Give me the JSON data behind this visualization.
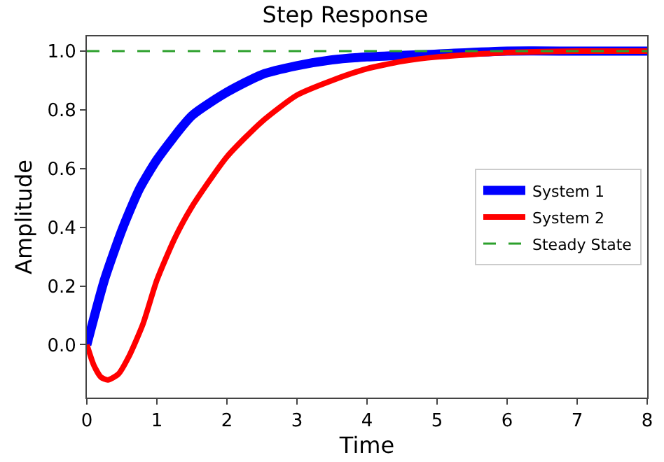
{
  "chart_data": {
    "type": "line",
    "title": "Step Response",
    "xlabel": "Time",
    "ylabel": "Amplitude",
    "xlim": [
      0,
      8
    ],
    "xticks": [
      0,
      1,
      2,
      3,
      4,
      5,
      6,
      7,
      8
    ],
    "ylim": [
      -0.18,
      1.05
    ],
    "yticks": [
      {
        "value": 0,
        "label": "0.0"
      },
      0.2,
      0.4,
      0.6,
      0.8,
      {
        "value": 1,
        "label": "1.0"
      }
    ],
    "grid": false,
    "legend": "right",
    "line_style": "solid",
    "marker": "none",
    "series": [
      {
        "name": "System 1",
        "color": "#0000ff",
        "x": [
          0,
          0.25,
          0.5,
          0.75,
          1,
          1.5,
          2,
          2.5,
          3,
          3.5,
          4,
          5,
          6,
          7,
          8
        ],
        "values": [
          0,
          0.22,
          0.39,
          0.53,
          0.63,
          0.78,
          0.86,
          0.92,
          0.95,
          0.97,
          0.98,
          0.99,
          1.0,
          1.0,
          1.0
        ]
      },
      {
        "name": "System 2",
        "color": "#ff0000",
        "x": [
          0,
          0.1,
          0.2,
          0.3,
          0.45,
          0.6,
          0.8,
          1,
          1.25,
          1.5,
          2,
          2.5,
          3,
          3.5,
          4,
          4.5,
          5,
          6,
          7,
          8
        ],
        "values": [
          0,
          -0.07,
          -0.11,
          -0.12,
          -0.1,
          -0.04,
          0.07,
          0.22,
          0.36,
          0.47,
          0.64,
          0.76,
          0.85,
          0.9,
          0.94,
          0.965,
          0.98,
          0.995,
          1.0,
          1.0
        ]
      }
    ],
    "ref_lines": [
      {
        "axis": "y",
        "value": 1,
        "label": "Steady State",
        "color": "#2ca02c",
        "line_style": "dashed"
      }
    ]
  }
}
